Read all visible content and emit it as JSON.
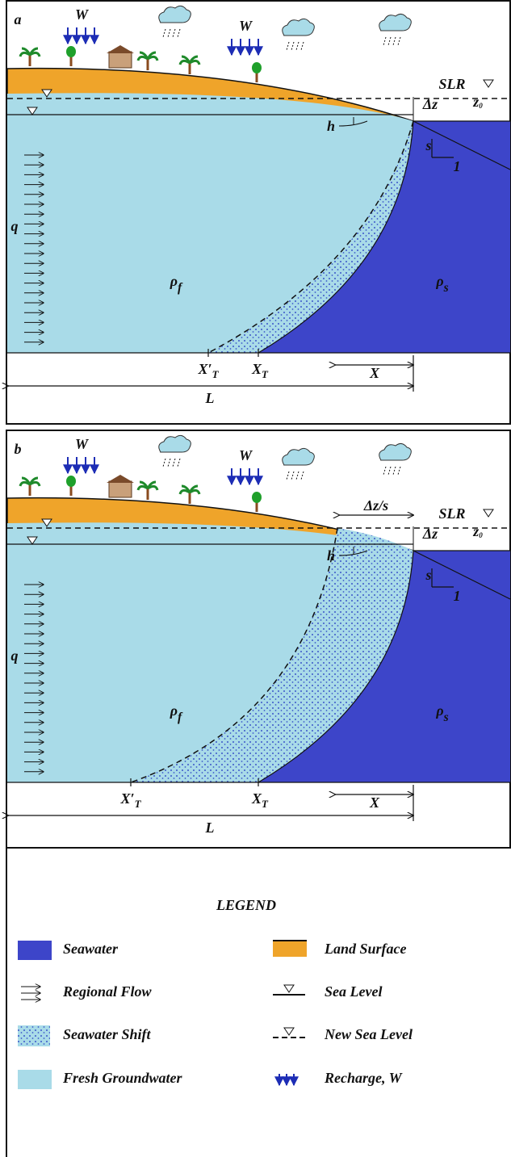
{
  "panels": [
    {
      "letter": "a",
      "recharge_labels": [
        "W",
        "W"
      ],
      "slr": "SLR",
      "delta_z": "Δz",
      "z0": {
        "base": "z",
        "sub": "0"
      },
      "h": "h",
      "slope_s": "s",
      "slope_1": "1",
      "rho_f": {
        "base": "ρ",
        "sub": "f"
      },
      "rho_s": {
        "base": "ρ",
        "sub": "s"
      },
      "q": "q",
      "x_t_prime": {
        "base": "X′",
        "sub": "T"
      },
      "x_t": {
        "base": "X",
        "sub": "T"
      },
      "x": "X",
      "l": "L"
    },
    {
      "letter": "b",
      "recharge_labels": [
        "W",
        "W"
      ],
      "slr": "SLR",
      "delta_z": "Δz",
      "shift_width": "Δz/s",
      "z0": {
        "base": "z",
        "sub": "0"
      },
      "h": "h",
      "slope_s": "s",
      "slope_1": "1",
      "rho_f": {
        "base": "ρ",
        "sub": "f"
      },
      "rho_s": {
        "base": "ρ",
        "sub": "s"
      },
      "q": "q",
      "x_t_prime": {
        "base": "X′",
        "sub": "T"
      },
      "x_t": {
        "base": "X",
        "sub": "T"
      },
      "x": "X",
      "l": "L"
    }
  ],
  "legend": {
    "title": "LEGEND",
    "items": [
      "Seawater",
      "Land Surface",
      "Regional Flow",
      "Sea Level",
      "Seawater Shift",
      "New Sea Level",
      "Fresh Groundwater",
      "Recharge, W"
    ]
  }
}
